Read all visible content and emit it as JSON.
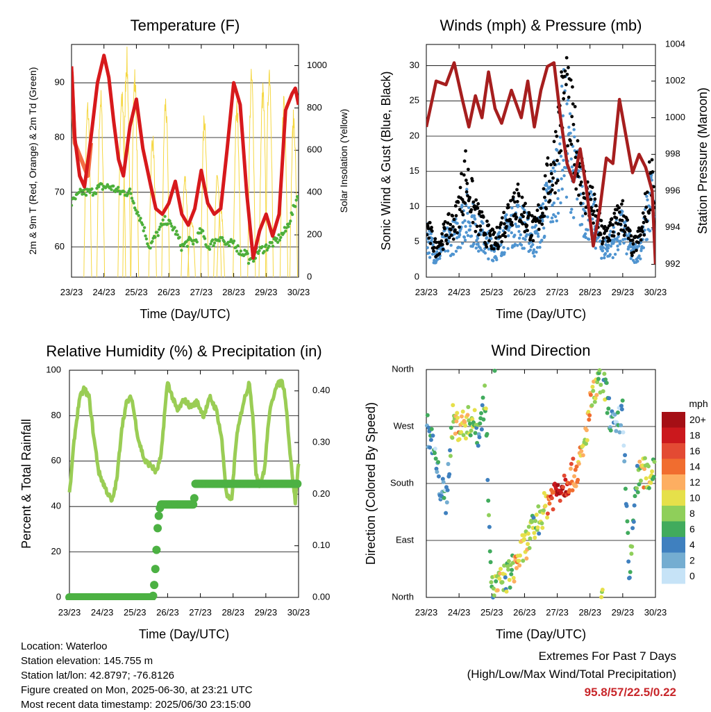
{
  "x_ticks": [
    "23/23",
    "24/23",
    "25/23",
    "26/23",
    "27/23",
    "28/23",
    "29/23",
    "30/23"
  ],
  "info": {
    "location": "Location: Waterloo",
    "elevation": "Station elevation: 145.755 m",
    "latlon": "Station lat/lon: 42.8797; -76.8126",
    "created": "Figure created on Mon, 2025-06-30, at 23:21 UTC",
    "recent": "Most recent data timestamp: 2025/06/30 23:15:00"
  },
  "extremes": {
    "title": "Extremes For Past 7 Days",
    "subtitle": "(High/Low/Max Wind/Total Precipitation)",
    "values": "95.8/57/22.5/0.22"
  },
  "colorbar": {
    "unit": "mph",
    "labels": [
      "20+",
      "18",
      "16",
      "14",
      "12",
      "10",
      "8",
      "6",
      "4",
      "2",
      "0"
    ],
    "colors": [
      "#a50f15",
      "#cb181d",
      "#e34a33",
      "#f16d2f",
      "#fdae61",
      "#e6e04a",
      "#8fcf5a",
      "#41ab5d",
      "#3f80bf",
      "#74add1",
      "#c6e3f7"
    ]
  },
  "chart_data": [
    {
      "type": "line",
      "title": "Temperature (F)",
      "xlabel": "Time (Day/UTC)",
      "ylabel": "2m & 9m T (Red, Orange) & 2m Td (Green)",
      "ylabel_right": "Solar Insolation (Yellow)",
      "xlim": [
        0,
        7
      ],
      "ylim": [
        54.5,
        97
      ],
      "ylim_right": [
        0,
        1100
      ],
      "yticks": [
        60,
        70,
        80,
        90
      ],
      "yticks_right": [
        0,
        200,
        400,
        600,
        800,
        1000
      ],
      "grid": "horizontal",
      "colors": {
        "temp2m": "#d7191c",
        "temp9m": "#f46d43",
        "dew": "#4daf3a",
        "solar": "#f5d742"
      },
      "series": [
        {
          "key": "temp2m",
          "axis": "left",
          "x": [
            0,
            0.1,
            0.25,
            0.4,
            0.6,
            0.8,
            1.0,
            1.15,
            1.3,
            1.45,
            1.6,
            1.8,
            2.0,
            2.2,
            2.45,
            2.6,
            2.8,
            3.0,
            3.2,
            3.4,
            3.6,
            3.8,
            4.0,
            4.2,
            4.4,
            4.6,
            4.8,
            5.0,
            5.2,
            5.4,
            5.6,
            5.8,
            6.0,
            6.2,
            6.4,
            6.6,
            6.8,
            6.9,
            7.0
          ],
          "y": [
            93,
            80,
            73,
            71,
            80,
            90,
            95,
            91,
            83,
            76,
            73,
            82,
            87,
            78,
            71,
            67,
            66,
            68,
            72,
            66,
            64,
            67,
            74,
            68,
            66,
            67,
            78,
            90,
            86,
            70,
            58,
            63,
            66,
            62,
            66,
            85,
            88,
            89,
            86
          ]
        },
        {
          "key": "temp9m",
          "axis": "left",
          "x": [
            0,
            0.1,
            0.3,
            0.5,
            0.6
          ],
          "y": [
            92,
            79,
            76,
            73,
            79
          ]
        },
        {
          "key": "dew",
          "axis": "left",
          "x": [
            0,
            0.3,
            0.6,
            0.9,
            1.2,
            1.5,
            1.8,
            2.0,
            2.2,
            2.4,
            2.6,
            2.9,
            3.2,
            3.4,
            3.6,
            3.8,
            4.0,
            4.2,
            4.4,
            4.6,
            4.8,
            5.0,
            5.2,
            5.4,
            5.5,
            5.7,
            6.0,
            6.3,
            6.6,
            6.8,
            7.0
          ],
          "y": [
            68,
            70,
            70,
            71,
            71,
            70,
            70,
            67,
            64,
            60,
            62,
            65,
            63,
            60,
            61,
            61,
            63,
            60,
            61,
            62,
            60,
            61,
            59,
            59,
            57,
            59,
            60,
            61,
            63,
            66,
            70
          ]
        },
        {
          "key": "solar",
          "axis": "right",
          "peaks_x": [
            0.5,
            0.9,
            1.55,
            1.7,
            1.95,
            2.5,
            2.9,
            3.5,
            3.7,
            4.1,
            4.5,
            4.6,
            5.1,
            5.55,
            5.9,
            6.1,
            6.55,
            6.85
          ],
          "peaks_y": [
            850,
            900,
            920,
            1100,
            1000,
            700,
            880,
            500,
            300,
            800,
            500,
            350,
            850,
            1000,
            930,
            1050,
            900,
            800
          ]
        }
      ]
    },
    {
      "type": "scatter+line",
      "title": "Winds (mph) & Pressure (mb)",
      "xlabel": "Time (Day/UTC)",
      "ylabel": "Sonic Wind & Gust (Blue, Black)",
      "ylabel_right": "Station Pressure (Maroon)",
      "xlim": [
        0,
        7
      ],
      "ylim": [
        0,
        33
      ],
      "ylim_right": [
        991.3,
        1004
      ],
      "yticks": [
        0,
        5,
        10,
        15,
        20,
        25,
        30
      ],
      "yticks_right": [
        992,
        994,
        996,
        998,
        1000,
        1002,
        1004
      ],
      "grid": "horizontal",
      "colors": {
        "wind": "#4f94d0",
        "gust": "#000000",
        "pressure": "#a61e1e"
      },
      "series": [
        {
          "key": "wind",
          "axis": "left",
          "x": [
            0,
            0.3,
            0.6,
            0.9,
            1.2,
            1.5,
            1.8,
            2.1,
            2.4,
            2.7,
            3.0,
            3.3,
            3.6,
            3.9,
            4.2,
            4.5,
            4.8,
            5.1,
            5.4,
            5.7,
            6.0,
            6.3,
            6.6,
            6.9,
            7.0
          ],
          "y": [
            6,
            3,
            5,
            6,
            9,
            7,
            5,
            4,
            6,
            8,
            7,
            5,
            9,
            12,
            21,
            15,
            10,
            8,
            4,
            5,
            7,
            3,
            5,
            12,
            4
          ]
        },
        {
          "key": "gust",
          "axis": "left",
          "x": [
            0,
            0.3,
            0.6,
            0.9,
            1.2,
            1.5,
            1.8,
            2.1,
            2.4,
            2.7,
            3.0,
            3.3,
            3.6,
            3.9,
            4.2,
            4.5,
            4.8,
            5.1,
            5.4,
            5.7,
            6.0,
            6.3,
            6.6,
            6.9,
            7.0
          ],
          "y": [
            9,
            5,
            8,
            10,
            18,
            11,
            8,
            6,
            10,
            14,
            11,
            8,
            14,
            20,
            32,
            25,
            16,
            12,
            7,
            9,
            11,
            5,
            8,
            20,
            7
          ]
        },
        {
          "key": "pressure",
          "axis": "right",
          "x": [
            0,
            0.3,
            0.6,
            0.85,
            1.1,
            1.3,
            1.5,
            1.7,
            1.9,
            2.1,
            2.3,
            2.6,
            2.9,
            3.1,
            3.3,
            3.5,
            3.7,
            3.9,
            4.1,
            4.3,
            4.5,
            4.7,
            4.9,
            5.1,
            5.3,
            5.5,
            5.7,
            5.9,
            6.1,
            6.3,
            6.5,
            6.7,
            6.9,
            7.0
          ],
          "y": [
            999.5,
            1002,
            1001.8,
            1003,
            1001,
            999.5,
            1001.2,
            1000,
            1002.5,
            1000.5,
            999.7,
            1001.5,
            1000,
            1002,
            999.5,
            1001.5,
            1002.8,
            1003,
            1000,
            997.5,
            996.5,
            998.3,
            996,
            993,
            995,
            997.8,
            997.5,
            1001,
            999,
            997,
            998,
            997.3,
            996,
            992
          ]
        }
      ]
    },
    {
      "type": "line",
      "title": "Relative Humidity (%) & Precipitation (in)",
      "xlabel": "Time (Day/UTC)",
      "ylabel": "Percent & Total Rainfall",
      "xlim": [
        0,
        7
      ],
      "ylim": [
        0,
        100
      ],
      "ylim_right": [
        0,
        0.44
      ],
      "yticks": [
        0,
        20,
        40,
        60,
        80,
        100
      ],
      "yticks_right": [
        0.0,
        0.1,
        0.2,
        0.3,
        0.4
      ],
      "grid": "horizontal",
      "colors": {
        "rh": "#9acd55",
        "precip": "#4cb143"
      },
      "series": [
        {
          "key": "rh",
          "axis": "left",
          "x": [
            0,
            0.15,
            0.3,
            0.45,
            0.6,
            0.75,
            0.9,
            1.1,
            1.3,
            1.45,
            1.6,
            1.75,
            1.9,
            2.1,
            2.3,
            2.5,
            2.65,
            2.8,
            2.9,
            3.0,
            3.1,
            3.3,
            3.5,
            3.7,
            3.9,
            4.1,
            4.3,
            4.5,
            4.65,
            4.8,
            4.95,
            5.1,
            5.3,
            5.5,
            5.6,
            5.7,
            5.8,
            5.95,
            6.1,
            6.3,
            6.5,
            6.6,
            6.75,
            6.9,
            7.0
          ],
          "y": [
            45,
            70,
            87,
            92,
            88,
            70,
            55,
            48,
            42,
            52,
            75,
            86,
            88,
            70,
            60,
            58,
            55,
            62,
            80,
            95,
            90,
            82,
            87,
            84,
            86,
            80,
            88,
            82,
            70,
            45,
            42,
            70,
            85,
            95,
            80,
            55,
            50,
            55,
            80,
            93,
            95,
            88,
            62,
            42,
            60
          ]
        },
        {
          "key": "precip",
          "axis": "right",
          "x": [
            0,
            2.55,
            2.6,
            2.65,
            2.7,
            2.75,
            2.8,
            3.3,
            3.8,
            3.85,
            4.0,
            5.5,
            7.0
          ],
          "y": [
            0,
            0,
            0.03,
            0.08,
            0.14,
            0.17,
            0.18,
            0.18,
            0.18,
            0.22,
            0.22,
            0.22,
            0.22
          ]
        }
      ]
    },
    {
      "type": "scatter",
      "title": "Wind Direction",
      "xlabel": "Time (Day/UTC)",
      "ylabel": "Direction (Colored By Speed)",
      "xlim": [
        0,
        7
      ],
      "ylim": [
        0,
        360
      ],
      "ytick_labels": [
        "North",
        "East",
        "South",
        "West",
        "North"
      ],
      "grid": "horizontal",
      "series": [
        {
          "key": "direction",
          "color_by": "speed",
          "x": [
            0,
            0.2,
            0.4,
            0.6,
            0.8,
            1.0,
            1.2,
            1.4,
            1.6,
            1.8,
            2.0,
            2.2,
            2.4,
            2.6,
            2.8,
            3.0,
            3.2,
            3.4,
            3.6,
            3.8,
            4.0,
            4.2,
            4.4,
            4.6,
            4.8,
            5.0,
            5.2,
            5.4,
            5.6,
            5.8,
            6.0,
            6.2,
            6.4,
            6.6,
            6.8,
            7.0
          ],
          "y": [
            270,
            240,
            180,
            150,
            280,
            270,
            275,
            280,
            260,
            320,
            10,
            20,
            30,
            40,
            60,
            80,
            100,
            120,
            140,
            160,
            170,
            180,
            190,
            200,
            230,
            300,
            330,
            350,
            290,
            260,
            300,
            20,
            180,
            200,
            190,
            210
          ],
          "speed": [
            4,
            3,
            4,
            2,
            9,
            12,
            10,
            8,
            5,
            7,
            5,
            11,
            6,
            7,
            12,
            9,
            8,
            7,
            11,
            15,
            20,
            18,
            15,
            13,
            10,
            12,
            9,
            7,
            6,
            2,
            3,
            7,
            4,
            12,
            9,
            6
          ]
        }
      ]
    }
  ]
}
